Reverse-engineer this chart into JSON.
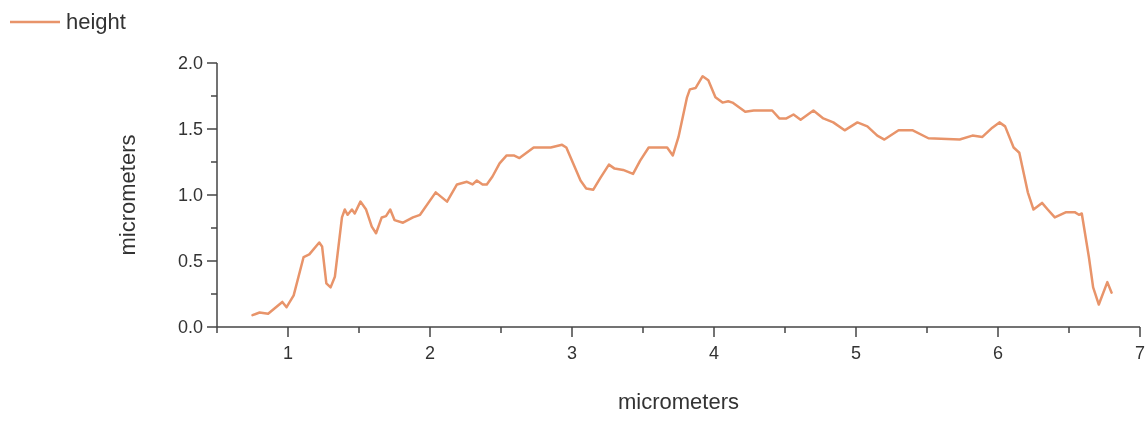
{
  "chart_data": {
    "type": "line",
    "xlabel": "micrometers",
    "ylabel": "micrometers",
    "xlim": [
      0.5,
      7
    ],
    "ylim": [
      0,
      2
    ],
    "xticks": [
      {
        "value": 0.5,
        "label": null
      },
      1,
      {
        "value": 1.5,
        "label": null
      },
      2,
      {
        "value": 2.5,
        "label": null
      },
      3,
      {
        "value": 3.5,
        "label": null
      },
      4,
      {
        "value": 4.5,
        "label": null
      },
      5,
      {
        "value": 5.5,
        "label": null
      },
      6,
      {
        "value": 6.5,
        "label": null
      },
      7
    ],
    "yticks": [
      {
        "value": 0,
        "label": "0.0"
      },
      {
        "value": 0.25,
        "label": null
      },
      {
        "value": 0.5,
        "label": "0.5"
      },
      {
        "value": 0.75,
        "label": null
      },
      {
        "value": 1,
        "label": "1.0"
      },
      {
        "value": 1.25,
        "label": null
      },
      {
        "value": 1.5,
        "label": "1.5"
      },
      {
        "value": 1.75,
        "label": null
      },
      {
        "value": 2,
        "label": "2.0"
      }
    ],
    "legend": "top left",
    "grid": false,
    "line_style": "solid",
    "marker": "none",
    "series": [
      {
        "name": "height",
        "color": "#e8946a",
        "x": [
          0.75,
          0.8,
          0.86,
          0.96,
          0.99,
          1.04,
          1.11,
          1.15,
          1.22,
          1.24,
          1.27,
          1.3,
          1.33,
          1.38,
          1.4,
          1.42,
          1.45,
          1.47,
          1.51,
          1.55,
          1.59,
          1.62,
          1.66,
          1.69,
          1.72,
          1.75,
          1.81,
          1.88,
          1.93,
          2.04,
          2.12,
          2.19,
          2.26,
          2.3,
          2.33,
          2.37,
          2.4,
          2.44,
          2.49,
          2.54,
          2.59,
          2.63,
          2.73,
          2.85,
          2.93,
          2.96,
          3.06,
          3.1,
          3.15,
          3.2,
          3.26,
          3.3,
          3.36,
          3.43,
          3.48,
          3.54,
          3.6,
          3.67,
          3.71,
          3.75,
          3.81,
          3.83,
          3.87,
          3.92,
          3.96,
          4.01,
          4.06,
          4.1,
          4.13,
          4.22,
          4.28,
          4.41,
          4.46,
          4.51,
          4.56,
          4.61,
          4.7,
          4.77,
          4.84,
          4.92,
          5.01,
          5.08,
          5.15,
          5.2,
          5.3,
          5.4,
          5.51,
          5.73,
          5.82,
          5.89,
          5.96,
          6.01,
          6.05,
          6.11,
          6.15,
          6.21,
          6.25,
          6.31,
          6.35,
          6.4,
          6.48,
          6.54,
          6.57,
          6.59,
          6.64,
          6.67,
          6.71,
          6.77,
          6.8
        ],
        "values": [
          0.09,
          0.11,
          0.1,
          0.19,
          0.15,
          0.24,
          0.53,
          0.55,
          0.64,
          0.61,
          0.33,
          0.3,
          0.38,
          0.83,
          0.89,
          0.85,
          0.89,
          0.86,
          0.95,
          0.89,
          0.76,
          0.71,
          0.83,
          0.84,
          0.89,
          0.81,
          0.79,
          0.83,
          0.85,
          1.02,
          0.95,
          1.08,
          1.1,
          1.08,
          1.11,
          1.08,
          1.08,
          1.14,
          1.24,
          1.3,
          1.3,
          1.28,
          1.36,
          1.36,
          1.38,
          1.36,
          1.11,
          1.05,
          1.04,
          1.13,
          1.23,
          1.2,
          1.19,
          1.16,
          1.26,
          1.36,
          1.36,
          1.36,
          1.3,
          1.44,
          1.74,
          1.8,
          1.81,
          1.9,
          1.87,
          1.74,
          1.7,
          1.71,
          1.7,
          1.63,
          1.64,
          1.64,
          1.58,
          1.58,
          1.61,
          1.57,
          1.64,
          1.58,
          1.55,
          1.49,
          1.55,
          1.52,
          1.45,
          1.42,
          1.49,
          1.49,
          1.43,
          1.42,
          1.45,
          1.44,
          1.51,
          1.55,
          1.52,
          1.36,
          1.32,
          1.02,
          0.89,
          0.94,
          0.89,
          0.83,
          0.87,
          0.87,
          0.85,
          0.86,
          0.53,
          0.3,
          0.17,
          0.34,
          0.26
        ]
      }
    ]
  }
}
